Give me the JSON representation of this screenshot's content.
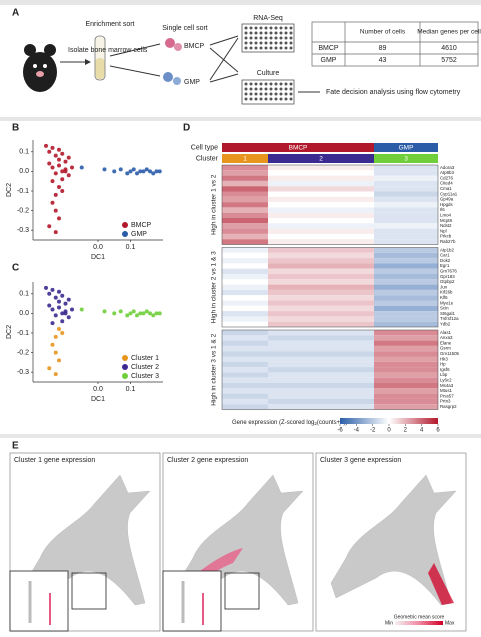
{
  "panel_a": {
    "label": "A",
    "steps": {
      "isolate": "Isolate bone marrow cells",
      "enrich": "Enrichment sort",
      "single": "Single cell sort",
      "bmcp": "BMCP",
      "gmp": "GMP",
      "rnaseq": "RNA-Seq",
      "culture": "Culture",
      "fate": "Fate decision analysis using flow cytometry"
    },
    "table": {
      "columns": [
        "Number of cells",
        "Median genes per cell"
      ],
      "rows": [
        [
          "BMCP",
          89,
          4610
        ],
        [
          "GMP",
          43,
          5752
        ]
      ]
    }
  },
  "panel_labels": [
    "B",
    "C",
    "D"
  ],
  "chart_data": [
    {
      "type": "scatter",
      "xlabel": "DC1",
      "ylabel": "DC2",
      "xlim": [
        -0.2,
        0.2
      ],
      "ylim": [
        -0.35,
        0.16
      ],
      "xticks": [
        {
          "value": 0,
          "label": "0.0"
        },
        0.1
      ],
      "yticks": [
        -0.3,
        -0.2,
        -0.1,
        {
          "value": 0,
          "label": "0.0"
        },
        0.1
      ],
      "legend": "lower right",
      "series": [
        {
          "name": "BMCP",
          "color": "#b2182b",
          "x": [
            -0.16,
            -0.15,
            -0.14,
            -0.13,
            -0.12,
            -0.11,
            -0.1,
            -0.09,
            -0.15,
            -0.14,
            -0.12,
            -0.11,
            -0.13,
            -0.1,
            -0.09,
            -0.08,
            -0.14,
            -0.12,
            -0.13,
            -0.11,
            -0.14,
            -0.13,
            -0.12,
            -0.15,
            -0.13,
            -0.12,
            -0.11,
            -0.1
          ],
          "y": [
            0.13,
            0.1,
            0.12,
            0.08,
            0.11,
            0.09,
            0.05,
            0.07,
            0.04,
            0.02,
            0.03,
            0,
            -0.01,
            0.01,
            -0.02,
            0.02,
            -0.05,
            -0.08,
            -0.12,
            -0.1,
            -0.16,
            -0.2,
            -0.24,
            -0.28,
            -0.31,
            0.06,
            -0.04,
            0
          ]
        },
        {
          "name": "GMP",
          "color": "#2a5ca8",
          "x": [
            -0.05,
            0.02,
            0.05,
            0.07,
            0.09,
            0.1,
            0.11,
            0.12,
            0.13,
            0.14,
            0.15,
            0.16,
            0.17,
            0.18,
            0.19
          ],
          "y": [
            0.02,
            0.01,
            0,
            0.01,
            -0.01,
            0,
            0.01,
            -0.01,
            0,
            0,
            0.01,
            0,
            -0.01,
            0,
            0
          ]
        }
      ]
    },
    {
      "type": "scatter",
      "xlabel": "DC1",
      "ylabel": "DC2",
      "xlim": [
        -0.2,
        0.2
      ],
      "ylim": [
        -0.35,
        0.16
      ],
      "xticks": [
        {
          "value": 0,
          "label": "0.0"
        },
        0.1
      ],
      "yticks": [
        -0.3,
        -0.2,
        -0.1,
        {
          "value": 0,
          "label": "0.0"
        },
        0.1
      ],
      "legend": "lower right",
      "series": [
        {
          "name": "Cluster 1",
          "color": "#e8951e",
          "x": [
            -0.12,
            -0.13,
            -0.11,
            -0.14,
            -0.13,
            -0.12,
            -0.15,
            -0.13
          ],
          "y": [
            -0.08,
            -0.12,
            -0.1,
            -0.16,
            -0.2,
            -0.24,
            -0.28,
            -0.31
          ]
        },
        {
          "name": "Cluster 2",
          "color": "#3b2a8f",
          "x": [
            -0.16,
            -0.15,
            -0.14,
            -0.13,
            -0.12,
            -0.11,
            -0.1,
            -0.09,
            -0.15,
            -0.14,
            -0.12,
            -0.11,
            -0.13,
            -0.1,
            -0.09,
            -0.08,
            -0.14,
            -0.12,
            -0.11,
            -0.1
          ],
          "y": [
            0.13,
            0.1,
            0.12,
            0.08,
            0.11,
            0.09,
            0.05,
            0.07,
            0.04,
            0.02,
            0.03,
            0,
            -0.01,
            0.01,
            -0.02,
            0.02,
            -0.05,
            0.06,
            -0.04,
            0
          ]
        },
        {
          "name": "Cluster 3",
          "color": "#6fce3a",
          "x": [
            -0.05,
            0.02,
            0.05,
            0.07,
            0.09,
            0.1,
            0.11,
            0.12,
            0.13,
            0.14,
            0.15,
            0.16,
            0.17,
            0.18,
            0.19
          ],
          "y": [
            0.02,
            0.01,
            0,
            0.01,
            -0.01,
            0,
            0.01,
            -0.01,
            0,
            0,
            0.01,
            0,
            -0.01,
            0,
            0
          ]
        }
      ]
    },
    {
      "type": "heatmap",
      "annotations": [
        {
          "label": "Cell type",
          "categories": [
            "BMCP",
            "GMP"
          ],
          "colors": [
            "#b2182b",
            "#2a5ca8"
          ]
        },
        {
          "label": "Cluster",
          "categories": [
            "1",
            "2",
            "3"
          ],
          "colors": [
            "#e8951e",
            "#3b2a8f",
            "#6fce3a"
          ]
        }
      ],
      "groups": [
        {
          "label": "High in cluster 1 vs 2",
          "genes": [
            "Adora3",
            "Atp8b3",
            "Cd276",
            "Cited4",
            "Cma1",
            "Cyp11a1",
            "Gp49a",
            "Hpgds",
            "Il6",
            "Lmo4",
            "Mcpt8",
            "Ndst2",
            "Npl",
            "Prkcb",
            "Rab27b"
          ],
          "values": [
            [
              3,
              0.5,
              -1
            ],
            [
              2.5,
              0,
              -1
            ],
            [
              3.5,
              0.5,
              -0.5
            ],
            [
              2,
              -0.5,
              -1
            ],
            [
              4,
              1,
              -1
            ],
            [
              3,
              0,
              -1.5
            ],
            [
              2.5,
              0.5,
              -1
            ],
            [
              3.5,
              0,
              -0.5
            ],
            [
              2,
              -0.5,
              -1
            ],
            [
              3,
              0.5,
              -1
            ],
            [
              4,
              0,
              -1
            ],
            [
              2.5,
              -0.5,
              -0.5
            ],
            [
              3,
              0.5,
              -1
            ],
            [
              2,
              0,
              -1
            ],
            [
              3.5,
              0.5,
              -1
            ]
          ]
        },
        {
          "label": "High in cluster 2 vs 1 & 3",
          "genes": [
            "Atp1b2",
            "Car1",
            "Dok2",
            "Egr1",
            "Gm7676",
            "Gpr183",
            "Gtpbp2",
            "Jun",
            "Kif26b",
            "Klf6",
            "Myo1e",
            "Scin",
            "St6gal1",
            "Tnfrsf12a",
            "Ydb2"
          ],
          "values": [
            [
              -0.5,
              1.5,
              -2
            ],
            [
              0,
              1,
              -2.5
            ],
            [
              -0.5,
              1.5,
              -2
            ],
            [
              0,
              2,
              -3
            ],
            [
              -1,
              1,
              -2
            ],
            [
              -0.5,
              1.5,
              -2.5
            ],
            [
              0,
              1,
              -2
            ],
            [
              -0.5,
              2,
              -3
            ],
            [
              -1,
              1.5,
              -2
            ],
            [
              0,
              1,
              -2.5
            ],
            [
              -0.5,
              1.5,
              -2
            ],
            [
              0,
              1,
              -3
            ],
            [
              -1,
              1.5,
              -2
            ],
            [
              -0.5,
              1,
              -2
            ],
            [
              0,
              1.5,
              -2.5
            ]
          ]
        },
        {
          "label": "High in cluster 3 vs 1 & 2",
          "genes": [
            "Alas1",
            "Anxa3",
            "Elane",
            "Gsrm",
            "Gm11505",
            "Hk3",
            "Hp",
            "Igsf6",
            "Lbp",
            "Ly6c2",
            "Ms4a3",
            "Mtus1",
            "Prss57",
            "Prtn3",
            "Rasgrp2"
          ],
          "values": [
            [
              -1.5,
              -1,
              3
            ],
            [
              -1,
              -1.5,
              2.5
            ],
            [
              -1.5,
              -1,
              3.5
            ],
            [
              -1,
              -1,
              2.5
            ],
            [
              -1.5,
              -1.5,
              3
            ],
            [
              -1,
              -1,
              2.5
            ],
            [
              -1.5,
              -1,
              3
            ],
            [
              -1,
              -1.5,
              3
            ],
            [
              -1.5,
              -1,
              2.5
            ],
            [
              -1,
              -1,
              3
            ],
            [
              -1.5,
              -1.5,
              3.5
            ],
            [
              -1,
              -1,
              2.5
            ],
            [
              -1.5,
              -1,
              3
            ],
            [
              -1,
              -1.5,
              3
            ],
            [
              -1.5,
              -1,
              2.5
            ]
          ]
        }
      ],
      "colorbar": {
        "label": "Gene expression (Z-scored log",
        "label_sub": "2",
        "label_end": "(counts+1))",
        "lim": [
          -6,
          6
        ],
        "ticks": [
          -6,
          -4,
          -2,
          0,
          2,
          4,
          6
        ],
        "colormap": [
          "#2c5fa8",
          "#ffffff",
          "#b2182b"
        ]
      }
    }
  ],
  "panel_e": {
    "label": "E",
    "panels": [
      "Cluster 1 gene expression",
      "Cluster 2 gene expression",
      "Cluster 3 gene expression"
    ],
    "colorbar": {
      "label": "Geometric mean score",
      "min": "Min",
      "max": "Max"
    }
  }
}
